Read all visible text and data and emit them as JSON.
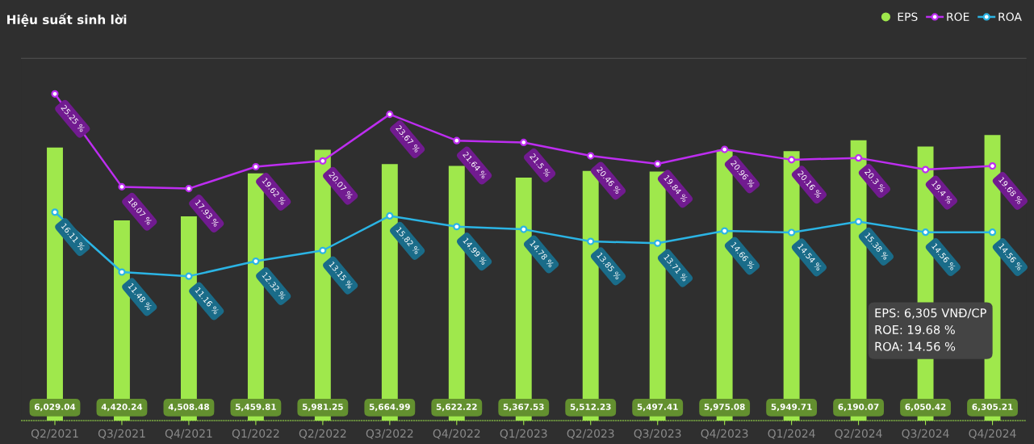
{
  "chart_data": {
    "type": "bar",
    "title": "Hiệu suất sinh lời",
    "categories": [
      "Q2/2021",
      "Q3/2021",
      "Q4/2021",
      "Q1/2022",
      "Q2/2022",
      "Q3/2022",
      "Q4/2022",
      "Q1/2023",
      "Q2/2023",
      "Q3/2023",
      "Q4/2023",
      "Q1/2024",
      "Q2/2024",
      "Q3/2024",
      "Q4/2024"
    ],
    "series": [
      {
        "name": "EPS",
        "axis": "y",
        "color": "#9fe84c",
        "values": [
          6029.04,
          4420.24,
          4508.48,
          5459.81,
          5981.25,
          5664.99,
          5622.22,
          5367.53,
          5512.23,
          5497.41,
          5975.08,
          5949.71,
          6190.07,
          6050.42,
          6305.21
        ],
        "value_labels": [
          "6,029.04",
          "4,420.24",
          "4,508.48",
          "5,459.81",
          "5,981.25",
          "5,664.99",
          "5,622.22",
          "5,367.53",
          "5,512.23",
          "5,497.41",
          "5,975.08",
          "5,949.71",
          "6,190.07",
          "6,050.42",
          "6,305.21"
        ]
      },
      {
        "name": "ROE",
        "type": "line",
        "axis": "y2",
        "color": "#bd2df0",
        "values": [
          25.25,
          18.07,
          17.93,
          19.62,
          20.07,
          23.67,
          21.64,
          21.5,
          20.46,
          19.84,
          20.96,
          20.16,
          20.3,
          19.4,
          19.68
        ],
        "value_labels": [
          "25.25 %",
          "18.07 %",
          "17.93 %",
          "19.62 %",
          "20.07 %",
          "23.67 %",
          "21.64 %",
          "21.5 %",
          "20.46 %",
          "19.84 %",
          "20.96 %",
          "20.16 %",
          "20.3 %",
          "19.4 %",
          "19.68 %"
        ]
      },
      {
        "name": "ROA",
        "type": "line",
        "axis": "y2",
        "color": "#2bb4e4",
        "values": [
          16.11,
          11.48,
          11.16,
          12.32,
          13.15,
          15.82,
          14.99,
          14.78,
          13.85,
          13.71,
          14.66,
          14.54,
          15.38,
          14.56,
          14.56
        ],
        "value_labels": [
          "16.11 %",
          "11.48 %",
          "11.16 %",
          "12.32 %",
          "13.15 %",
          "15.82 %",
          "14.99 %",
          "14.78 %",
          "13.85 %",
          "13.71 %",
          "14.66 %",
          "14.54 %",
          "15.38 %",
          "14.56 %",
          "14.56 %"
        ]
      }
    ],
    "ylim": [
      0,
      8000
    ],
    "y2lim": [
      0,
      28
    ],
    "tick_labels": "x",
    "legend": "top right",
    "marker": "circle",
    "annotations": [
      "EPS: 6,305 VNĐ/CP",
      "ROE: 19.68 %",
      "ROA: 14.56 %"
    ]
  }
}
